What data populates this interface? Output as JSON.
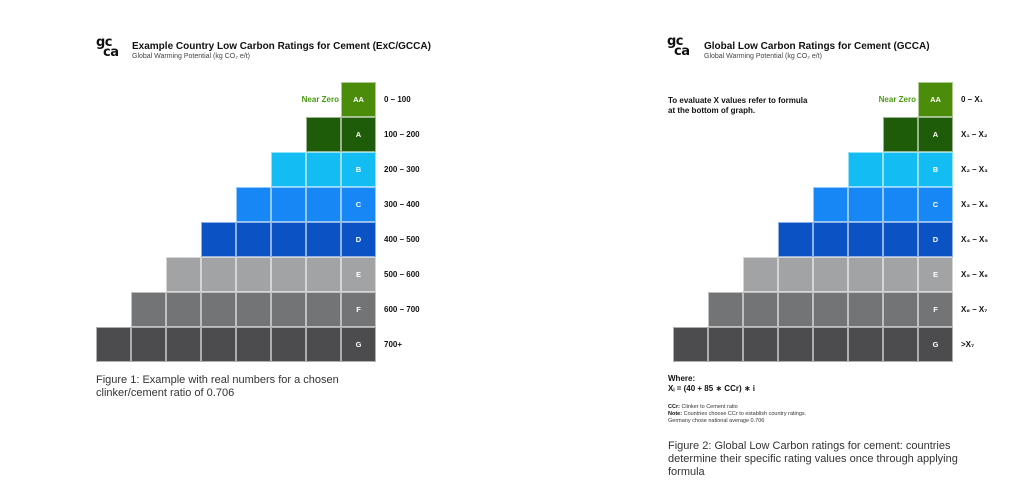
{
  "colors": {
    "AA": "#4b8c0b",
    "A": "#1f5c0a",
    "B": "#13bdf3",
    "C": "#1787f5",
    "D": "#0b53c4",
    "E": "#a2a3a5",
    "F": "#737476",
    "G": "#4c4c4e",
    "near_zero_text": "#4a9a12"
  },
  "logo_icon": "gcca-logo-icon",
  "logo": {
    "line1": "gc",
    "line2": "ca"
  },
  "figure1": {
    "title": "Example Country Low Carbon Ratings for Cement (ExC/GCCA)",
    "subtitle": "Global Warming Potential (kg CO₂ e/t)",
    "near_zero": "Near Zero",
    "ratings": [
      {
        "letter": "AA",
        "range": "0 – 100",
        "cells": 1
      },
      {
        "letter": "A",
        "range": "100 – 200",
        "cells": 2
      },
      {
        "letter": "B",
        "range": "200 – 300",
        "cells": 3
      },
      {
        "letter": "C",
        "range": "300 – 400",
        "cells": 4
      },
      {
        "letter": "D",
        "range": "400 – 500",
        "cells": 5
      },
      {
        "letter": "E",
        "range": "500 – 600",
        "cells": 6
      },
      {
        "letter": "F",
        "range": "600 – 700",
        "cells": 7
      },
      {
        "letter": "G",
        "range": "700+",
        "cells": 8
      }
    ],
    "caption": "Figure 1: Example with real numbers for a chosen clinker/cement ratio of 0.706"
  },
  "figure2": {
    "title": "Global Low Carbon Ratings for Cement (GCCA)",
    "subtitle": "Global Warming Potential (kg CO₂ e/t)",
    "near_zero": "Near Zero",
    "instruction_line1": "To evaluate X values refer to formula",
    "instruction_line2": "at the bottom of graph.",
    "ratings": [
      {
        "letter": "AA",
        "range": "0 – X₁",
        "cells": 1
      },
      {
        "letter": "A",
        "range": "X₁ – X₂",
        "cells": 2
      },
      {
        "letter": "B",
        "range": "X₂ – X₃",
        "cells": 3
      },
      {
        "letter": "C",
        "range": "X₃ – X₄",
        "cells": 4
      },
      {
        "letter": "D",
        "range": "X₄ – X₅",
        "cells": 5
      },
      {
        "letter": "E",
        "range": "X₅ – X₆",
        "cells": 6
      },
      {
        "letter": "F",
        "range": "X₆ – X₇",
        "cells": 7
      },
      {
        "letter": "G",
        "range": ">X₇",
        "cells": 8
      }
    ],
    "where_label": "Where:",
    "formula": "Xᵢ = (40 + 85 ∗ CCr) ∗ i",
    "ccr_label": "CCr:",
    "ccr_text": " Clinker to Cement ratio",
    "note_label": "Note:",
    "note_text": " Countries choose CCr to establish country ratings.",
    "note_line2": "Germany chose national average 0.706",
    "caption": "Figure 2: Global Low Carbon ratings for cement: countries determine their specific rating values once through applying formula"
  }
}
